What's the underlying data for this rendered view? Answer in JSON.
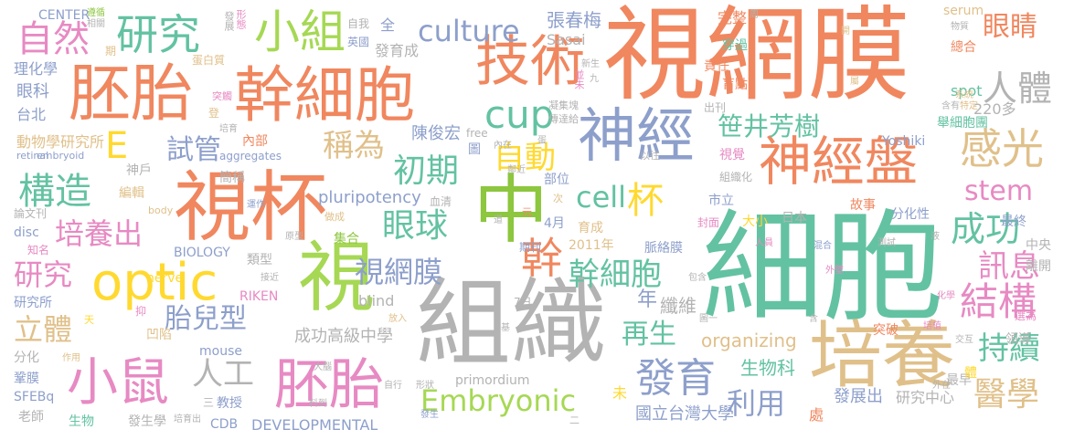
{
  "words": [
    {
      "text": "視網膜",
      "color": "#f0875f"
    },
    {
      "text": "細胞",
      "color": "#63c2a2"
    },
    {
      "text": "組織",
      "color": "#b3b3b3"
    },
    {
      "text": "視杯",
      "color": "#f0875f"
    },
    {
      "text": "培養",
      "color": "#e0c08a"
    },
    {
      "text": "中",
      "color": "#8dc63f"
    },
    {
      "text": "胚胎",
      "color": "#f0875f"
    },
    {
      "text": "幹細胞",
      "color": "#f0875f"
    },
    {
      "text": "技術",
      "color": "#f0875f"
    },
    {
      "text": "神經",
      "color": "#8d9fcb"
    },
    {
      "text": "神經盤",
      "color": "#f0875f"
    },
    {
      "text": "optic",
      "color": "#ffd92f"
    },
    {
      "text": "視",
      "color": "#a6d854"
    },
    {
      "text": "小鼠",
      "color": "#e78ac3"
    },
    {
      "text": "胚胎",
      "color": "#e78ac3"
    },
    {
      "text": "小組",
      "color": "#a6d854"
    },
    {
      "text": "研究",
      "color": "#63c2a2"
    },
    {
      "text": "culture",
      "color": "#8d9fcb"
    },
    {
      "text": "cup",
      "color": "#63c2a2"
    },
    {
      "text": "人體",
      "color": "#b3b3b3"
    },
    {
      "text": "眼睛",
      "color": "#f0875f"
    },
    {
      "text": "感光",
      "color": "#e0c08a"
    },
    {
      "text": "Embryonic",
      "color": "#a6d854"
    },
    {
      "text": "發育",
      "color": "#8d9fcb"
    },
    {
      "text": "利用",
      "color": "#8d9fcb"
    },
    {
      "text": "結構",
      "color": "#e78ac3"
    },
    {
      "text": "持續",
      "color": "#63c2a2"
    },
    {
      "text": "醫學",
      "color": "#e0c08a"
    },
    {
      "text": "訊息",
      "color": "#e78ac3"
    },
    {
      "text": "成功",
      "color": "#63c2a2"
    },
    {
      "text": "stem",
      "color": "#e78ac3"
    },
    {
      "text": "笹井芳樹",
      "color": "#63c2a2"
    },
    {
      "text": "自動",
      "color": "#ffd92f"
    },
    {
      "text": "初期",
      "color": "#63c2a2"
    },
    {
      "text": "cell",
      "color": "#63c2a2"
    },
    {
      "text": "杯",
      "color": "#ffd92f"
    },
    {
      "text": "構造",
      "color": "#63c2a2"
    },
    {
      "text": "培養出",
      "color": "#e78ac3"
    },
    {
      "text": "自然",
      "color": "#e78ac3"
    },
    {
      "text": "試管",
      "color": "#8d9fcb"
    },
    {
      "text": "稱為",
      "color": "#e0c08a"
    },
    {
      "text": "眼球",
      "color": "#63c2a2"
    },
    {
      "text": "視網膜",
      "color": "#8d9fcb"
    },
    {
      "text": "胎兒型",
      "color": "#8d9fcb"
    },
    {
      "text": "幹",
      "color": "#f0875f"
    },
    {
      "text": "幹細胞",
      "color": "#63c2a2"
    },
    {
      "text": "人工",
      "color": "#b3b3b3"
    },
    {
      "text": "立體",
      "color": "#e0c08a"
    },
    {
      "text": "研究",
      "color": "#e78ac3"
    },
    {
      "text": "再生",
      "color": "#63c2a2"
    },
    {
      "text": "organizing",
      "color": "#e0c08a"
    },
    {
      "text": "pluripotency",
      "color": "#8d9fcb"
    },
    {
      "text": "生物科",
      "color": "#63c2a2"
    },
    {
      "text": "E",
      "color": "#ffd92f"
    },
    {
      "text": "年",
      "color": "#8d9fcb"
    },
    {
      "text": "纖維",
      "color": "#b3b3b3"
    },
    {
      "text": "成功高級中學",
      "color": "#b3b3b3"
    },
    {
      "text": "國立台灣大學",
      "color": "#8d9fcb"
    },
    {
      "text": "發展出",
      "color": "#8d9fcb"
    },
    {
      "text": "研究中心",
      "color": "#b3b3b3"
    },
    {
      "text": "張春梅",
      "color": "#8d9fcb"
    },
    {
      "text": "陳俊宏",
      "color": "#8d9fcb"
    },
    {
      "text": "動物學研究所",
      "color": "#e0c08a"
    },
    {
      "text": "DEVELOPMENTAL",
      "color": "#8d9fcb"
    },
    {
      "text": "primordium",
      "color": "#b3b3b3"
    },
    {
      "text": "CENTER",
      "color": "#8d9fcb"
    },
    {
      "text": "BIOLOGY",
      "color": "#8d9fcb"
    },
    {
      "text": "RIKEN",
      "color": "#e78ac3"
    },
    {
      "text": "mouse",
      "color": "#8d9fcb"
    },
    {
      "text": "nerve",
      "color": "#ffd92f"
    },
    {
      "text": "blind",
      "color": "#b3b3b3"
    },
    {
      "text": "spot",
      "color": "#63c2a2"
    },
    {
      "text": "serum",
      "color": "#e0c08a"
    },
    {
      "text": "Sasai",
      "color": "#b3b3b3"
    },
    {
      "text": "Yoshiki",
      "color": "#8d9fcb"
    },
    {
      "text": "aggregates",
      "color": "#8d9fcb"
    },
    {
      "text": "embryoid",
      "color": "#8d9fcb"
    },
    {
      "text": "retinal",
      "color": "#8d9fcb"
    },
    {
      "text": "SFEBq",
      "color": "#8d9fcb"
    },
    {
      "text": "disc",
      "color": "#8d9fcb"
    },
    {
      "text": "free",
      "color": "#b3b3b3"
    },
    {
      "text": "body",
      "color": "#e0c08a"
    },
    {
      "text": "CDB",
      "color": "#8d9fcb"
    },
    {
      "text": "220多",
      "color": "#b3b3b3"
    },
    {
      "text": "2011年",
      "color": "#e0c08a"
    },
    {
      "text": "4月",
      "color": "#8d9fcb"
    },
    {
      "text": "7日",
      "color": "#b3b3b3"
    },
    {
      "text": "眼科",
      "color": "#8d9fcb"
    },
    {
      "text": "台北",
      "color": "#8d9fcb"
    },
    {
      "text": "理化學",
      "color": "#8d9fcb"
    },
    {
      "text": "神戶",
      "color": "#b3b3b3"
    },
    {
      "text": "編輯",
      "color": "#e0c08a"
    },
    {
      "text": "論文刊",
      "color": "#b3b3b3"
    },
    {
      "text": "知名",
      "color": "#e78ac3"
    },
    {
      "text": "研究所",
      "color": "#8d9fcb"
    },
    {
      "text": "分化",
      "color": "#b3b3b3"
    },
    {
      "text": "鞏膜",
      "color": "#8d9fcb"
    },
    {
      "text": "老師",
      "color": "#b3b3b3"
    },
    {
      "text": "生物",
      "color": "#63c2a2"
    },
    {
      "text": "發生學",
      "color": "#b3b3b3"
    },
    {
      "text": "教授",
      "color": "#8d9fcb"
    },
    {
      "text": "凹陷",
      "color": "#e0c08a"
    },
    {
      "text": "類型",
      "color": "#b3b3b3"
    },
    {
      "text": "集合",
      "color": "#8dc63f"
    },
    {
      "text": "脈絡膜",
      "color": "#8d9fcb"
    },
    {
      "text": "育成",
      "color": "#e0c08a"
    },
    {
      "text": "期刊",
      "color": "#8d9fcb"
    },
    {
      "text": "部位",
      "color": "#8d9fcb"
    },
    {
      "text": "市立",
      "color": "#8d9fcb"
    },
    {
      "text": "日本",
      "color": "#b3b3b3"
    },
    {
      "text": "大小",
      "color": "#ffd92f"
    },
    {
      "text": "封面",
      "color": "#e78ac3"
    },
    {
      "text": "故事",
      "color": "#f0875f"
    },
    {
      "text": "分化性",
      "color": "#8d9fcb"
    },
    {
      "text": "最終",
      "color": "#8d9fcb"
    },
    {
      "text": "中央",
      "color": "#b3b3b3"
    },
    {
      "text": "離開",
      "color": "#b3b3b3"
    },
    {
      "text": "選為",
      "color": "#e78ac3"
    },
    {
      "text": "領導",
      "color": "#b3b3b3"
    },
    {
      "text": "突破",
      "color": "#f0875f"
    },
    {
      "text": "最早",
      "color": "#b3b3b3"
    },
    {
      "text": "體",
      "color": "#ffd92f"
    },
    {
      "text": "處",
      "color": "#f0875f"
    },
    {
      "text": "未",
      "color": "#ffd92f"
    },
    {
      "text": "簡稱",
      "color": "#b3b3b3"
    },
    {
      "text": "視覺",
      "color": "#e78ac3"
    },
    {
      "text": "組織化",
      "color": "#b3b3b3"
    },
    {
      "text": "舉細胞團",
      "color": "#63c2a2"
    },
    {
      "text": "出刊",
      "color": "#b3b3b3"
    },
    {
      "text": "盲點",
      "color": "#f0875f"
    },
    {
      "text": "責任",
      "color": "#f0875f"
    },
    {
      "text": "穿過",
      "color": "#63c2a2"
    },
    {
      "text": "完整",
      "color": "#f0875f"
    },
    {
      "text": "總合",
      "color": "#f0875f"
    },
    {
      "text": "發育成",
      "color": "#b3b3b3"
    },
    {
      "text": "英國",
      "color": "#8d9fcb"
    },
    {
      "text": "自我",
      "color": "#b3b3b3"
    },
    {
      "text": "全",
      "color": "#8d9fcb"
    },
    {
      "text": "內部",
      "color": "#f0875f"
    },
    {
      "text": "蛋白質",
      "color": "#e0c08a"
    },
    {
      "text": "期",
      "color": "#e0c08a"
    },
    {
      "text": "發展",
      "color": "#b3b3b3"
    },
    {
      "text": "形態",
      "color": "#e78ac3"
    },
    {
      "text": "突觸",
      "color": "#e78ac3"
    },
    {
      "text": "凝集塊",
      "color": "#b3b3b3"
    },
    {
      "text": "傳達給",
      "color": "#b3b3b3"
    },
    {
      "text": "並未",
      "color": "#e78ac3"
    },
    {
      "text": "圖",
      "color": "#8d9fcb"
    },
    {
      "text": "以往",
      "color": "#b3b3b3"
    },
    {
      "text": "次",
      "color": "#e0c08a"
    },
    {
      "text": "元",
      "color": "#f0875f"
    },
    {
      "text": "血清",
      "color": "#b3b3b3"
    },
    {
      "text": "做成",
      "color": "#e0c08a"
    },
    {
      "text": "原型",
      "color": "#b3b3b3"
    },
    {
      "text": "接近",
      "color": "#b3b3b3"
    },
    {
      "text": "抑",
      "color": "#e78ac3"
    },
    {
      "text": "天",
      "color": "#ffd92f"
    },
    {
      "text": "作用",
      "color": "#e0c08a"
    },
    {
      "text": "大腦",
      "color": "#b3b3b3"
    },
    {
      "text": "料到",
      "color": "#b3b3b3"
    },
    {
      "text": "三",
      "color": "#b3b3b3"
    },
    {
      "text": "放入",
      "color": "#e0c08a"
    },
    {
      "text": "自行",
      "color": "#b3b3b3"
    },
    {
      "text": "形狀",
      "color": "#b3b3b3"
    },
    {
      "text": "發生",
      "color": "#8d9fcb"
    },
    {
      "text": "二",
      "color": "#b3b3b3"
    },
    {
      "text": "基",
      "color": "#b3b3b3"
    },
    {
      "text": "培育出",
      "color": "#b3b3b3"
    },
    {
      "text": "圖一",
      "color": "#b3b3b3"
    },
    {
      "text": "包含",
      "color": "#b3b3b3"
    },
    {
      "text": "人員",
      "color": "#e78ac3"
    },
    {
      "text": "混合",
      "color": "#8d9fcb"
    },
    {
      "text": "外壁",
      "color": "#e78ac3"
    },
    {
      "text": "測試",
      "color": "#b3b3b3"
    },
    {
      "text": "液",
      "color": "#b3b3b3"
    },
    {
      "text": "化學",
      "color": "#e78ac3"
    },
    {
      "text": "交互",
      "color": "#b3b3b3"
    },
    {
      "text": "培植",
      "color": "#e78ac3"
    },
    {
      "text": "外在",
      "color": "#b3b3b3"
    },
    {
      "text": "含",
      "color": "#b3b3b3"
    },
    {
      "text": "新生",
      "color": "#b3b3b3"
    },
    {
      "text": "九",
      "color": "#b3b3b3"
    },
    {
      "text": "特定",
      "color": "#e0c08a"
    },
    {
      "text": "系統",
      "color": "#e0c08a"
    },
    {
      "text": "含有",
      "color": "#b3b3b3"
    },
    {
      "text": "物質",
      "color": "#b3b3b3"
    },
    {
      "text": "相關",
      "color": "#b3b3b3"
    },
    {
      "text": "遵循",
      "color": "#8dc63f"
    },
    {
      "text": "運作",
      "color": "#8d9fcb"
    },
    {
      "text": "鄰近",
      "color": "#b3b3b3"
    },
    {
      "text": "內在",
      "color": "#b3b3b3"
    },
    {
      "text": "周",
      "color": "#b3b3b3"
    },
    {
      "text": "開",
      "color": "#e0c08a"
    },
    {
      "text": "登",
      "color": "#e0c08a"
    },
    {
      "text": "屬",
      "color": "#e0c08a"
    },
    {
      "text": "培育",
      "color": "#b3b3b3"
    },
    {
      "text": "道",
      "color": "#b3b3b3"
    },
    {
      "text": "蛋",
      "color": "#b3b3b3"
    }
  ]
}
